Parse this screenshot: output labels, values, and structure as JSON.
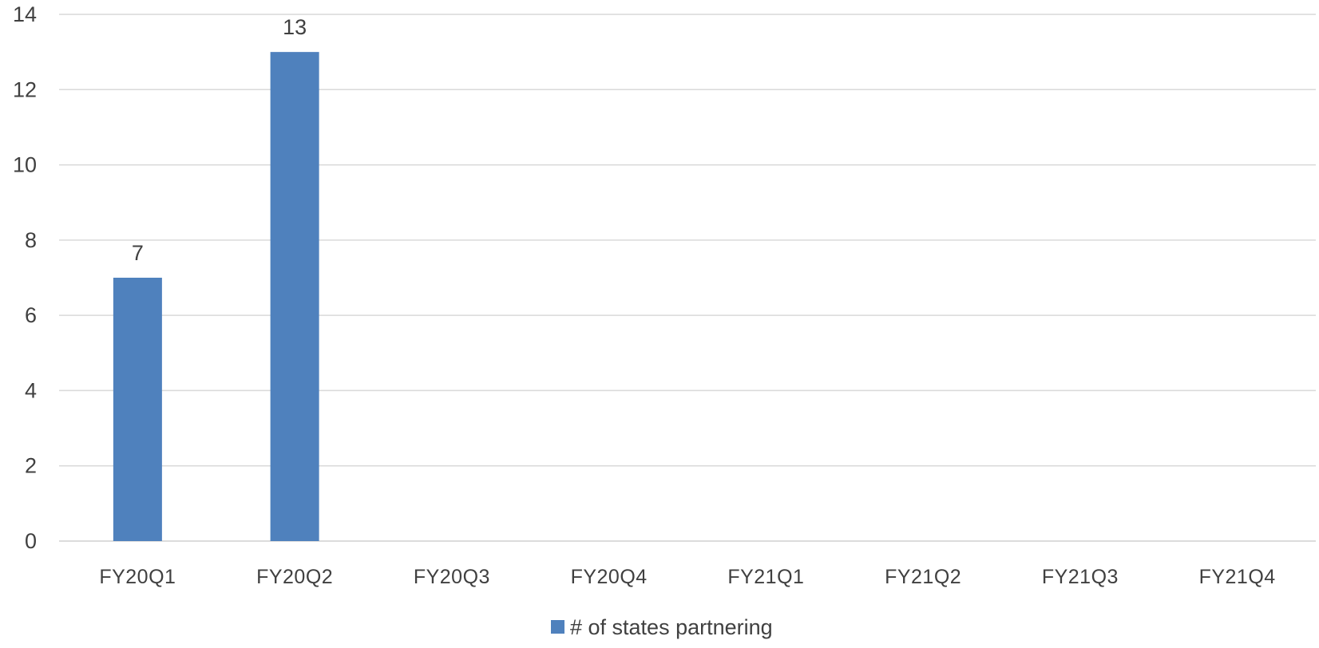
{
  "chart_data": {
    "type": "bar",
    "title": "",
    "xlabel": "",
    "ylabel": "",
    "categories": [
      "FY20Q1",
      "FY20Q2",
      "FY20Q3",
      "FY20Q4",
      "FY21Q1",
      "FY21Q2",
      "FY21Q3",
      "FY21Q4"
    ],
    "series": [
      {
        "name": "# of states partnering",
        "values": [
          7,
          13,
          null,
          null,
          null,
          null,
          null,
          null
        ],
        "color": "#4f81bd"
      }
    ],
    "data_labels": [
      7,
      13
    ],
    "ylim": [
      0,
      14
    ],
    "y_ticks": [
      0,
      2,
      4,
      6,
      8,
      10,
      12,
      14
    ],
    "grid": true,
    "legend_position": "bottom"
  }
}
